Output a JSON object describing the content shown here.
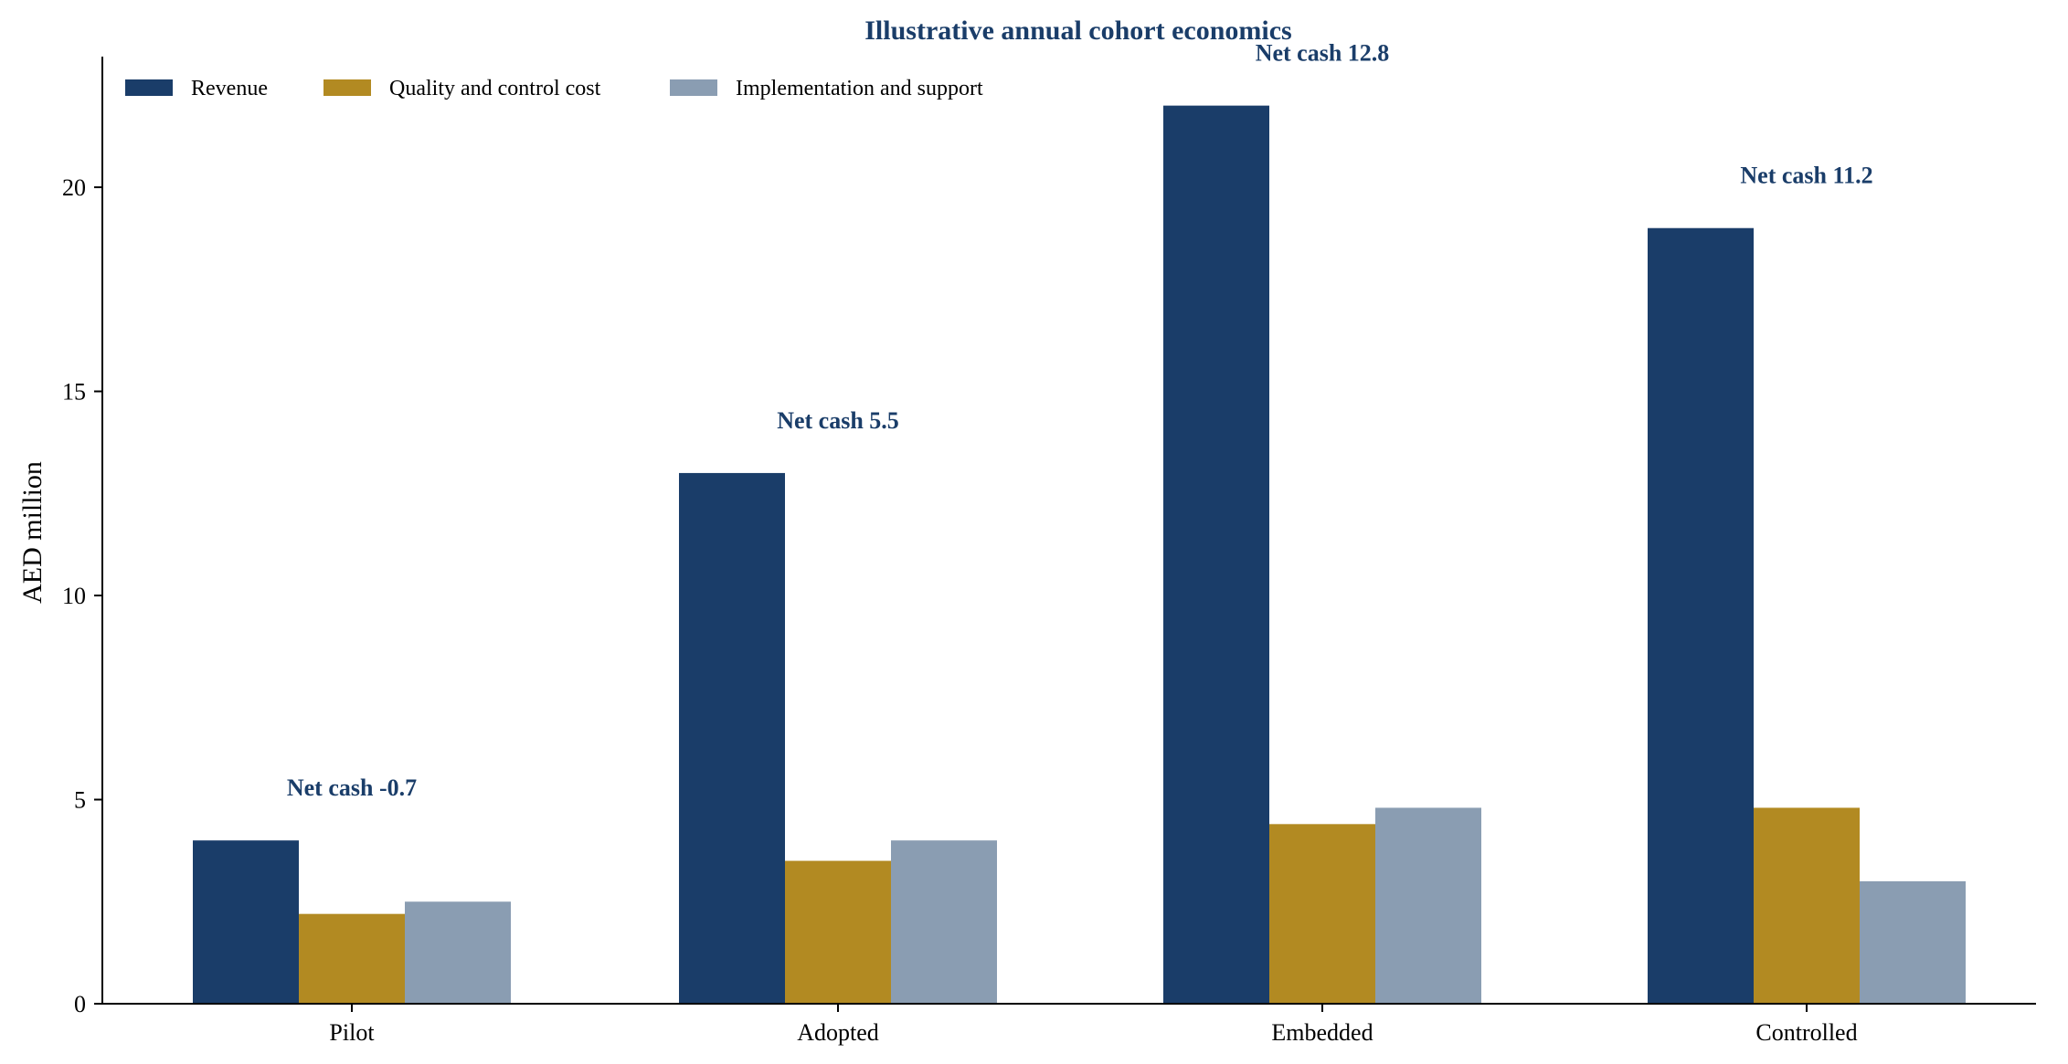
{
  "chart_data": {
    "type": "bar",
    "title": "Illustrative annual cohort economics",
    "xlabel": "",
    "ylabel": "AED million",
    "ylim": [
      0,
      23.2
    ],
    "yticks": [
      0,
      5,
      10,
      15,
      20
    ],
    "grid": false,
    "legend_position": "top-left",
    "categories": [
      "Pilot",
      "Adopted",
      "Embedded",
      "Controlled"
    ],
    "series": [
      {
        "name": "Revenue",
        "color": "#1a3d69",
        "values": [
          4.0,
          13.0,
          22.0,
          19.0
        ]
      },
      {
        "name": "Quality and control cost",
        "color": "#b28a22",
        "values": [
          2.2,
          3.5,
          4.4,
          4.8
        ]
      },
      {
        "name": "Implementation and support",
        "color": "#8a9db2",
        "values": [
          2.5,
          4.0,
          4.8,
          3.0
        ]
      }
    ],
    "annotations": [
      {
        "text": "Net cash -0.7",
        "category": "Pilot",
        "y": 5.1
      },
      {
        "text": "Net cash 5.5",
        "category": "Adopted",
        "y": 14.1
      },
      {
        "text": "Net cash 12.8",
        "category": "Embedded",
        "y": 23.1
      },
      {
        "text": "Net cash 11.2",
        "category": "Controlled",
        "y": 20.1
      }
    ],
    "title_color": "#1a3d69",
    "annotation_color": "#1a3d69"
  }
}
